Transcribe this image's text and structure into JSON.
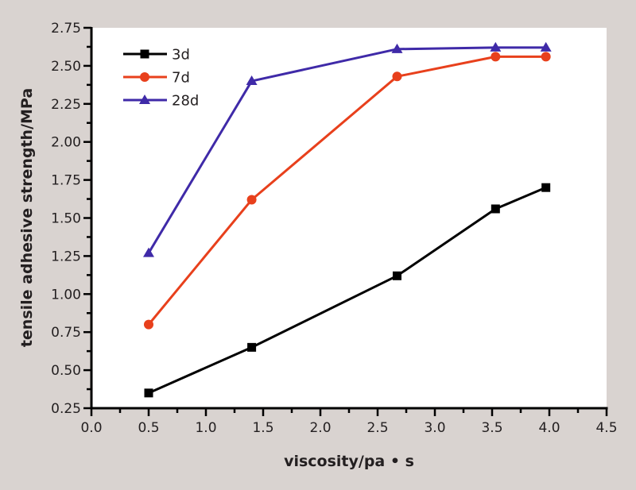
{
  "chart_data": {
    "type": "line",
    "title": "",
    "xlabel": "viscosity/pa • s",
    "ylabel": "tensile adhesive strength/MPa",
    "xlim": [
      0.0,
      4.5
    ],
    "ylim": [
      0.25,
      2.75
    ],
    "xticks": [
      "0.0",
      "0.5",
      "1.0",
      "1.5",
      "2.0",
      "2.5",
      "3.0",
      "3.5",
      "4.0",
      "4.5"
    ],
    "yticks": [
      "0.25",
      "0.50",
      "0.75",
      "1.00",
      "1.25",
      "1.50",
      "1.75",
      "2.00",
      "2.25",
      "2.50",
      "2.75"
    ],
    "grid": false,
    "legend_position": "top-left",
    "series": [
      {
        "name": "3d",
        "color": "#000000",
        "marker": "square",
        "x": [
          0.5,
          1.4,
          2.67,
          3.53,
          3.97
        ],
        "y": [
          0.35,
          0.65,
          1.12,
          1.56,
          1.7
        ]
      },
      {
        "name": "7d",
        "color": "#e8401c",
        "marker": "circle",
        "x": [
          0.5,
          1.4,
          2.67,
          3.53,
          3.97
        ],
        "y": [
          0.8,
          1.62,
          2.43,
          2.56,
          2.56
        ]
      },
      {
        "name": "28d",
        "color": "#3f2aa8",
        "marker": "triangle",
        "x": [
          0.5,
          1.4,
          2.67,
          3.53,
          3.97
        ],
        "y": [
          1.27,
          2.4,
          2.61,
          2.62,
          2.62
        ]
      }
    ]
  }
}
